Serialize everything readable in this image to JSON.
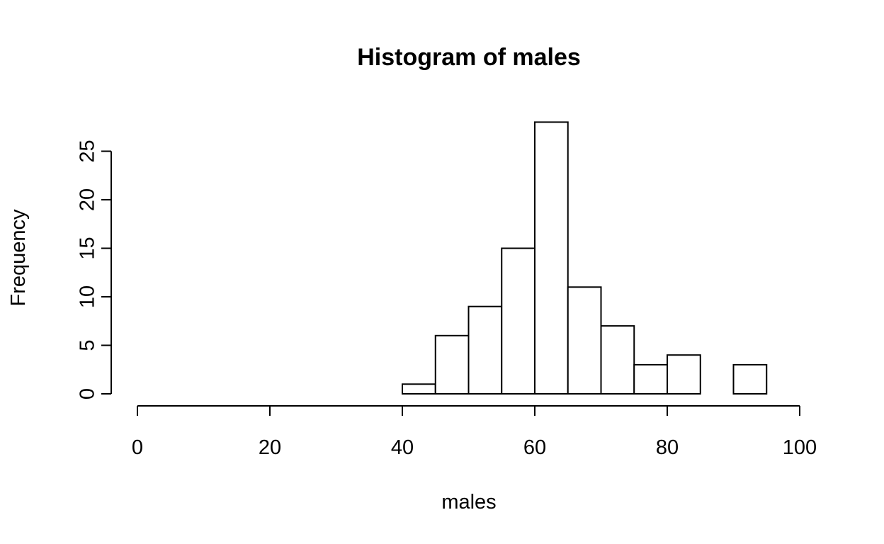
{
  "chart_data": {
    "type": "bar",
    "subtype": "histogram",
    "title": "Histogram of males",
    "xlabel": "males",
    "ylabel": "Frequency",
    "bins": [
      {
        "start": 40,
        "end": 45,
        "count": 1
      },
      {
        "start": 45,
        "end": 50,
        "count": 6
      },
      {
        "start": 50,
        "end": 55,
        "count": 9
      },
      {
        "start": 55,
        "end": 60,
        "count": 15
      },
      {
        "start": 60,
        "end": 65,
        "count": 28
      },
      {
        "start": 65,
        "end": 70,
        "count": 11
      },
      {
        "start": 70,
        "end": 75,
        "count": 7
      },
      {
        "start": 75,
        "end": 80,
        "count": 3
      },
      {
        "start": 80,
        "end": 85,
        "count": 4
      },
      {
        "start": 85,
        "end": 90,
        "count": 0
      },
      {
        "start": 90,
        "end": 95,
        "count": 3
      }
    ],
    "xlim": [
      0,
      100
    ],
    "ylim": [
      0,
      28
    ],
    "xticks": [
      0,
      20,
      40,
      60,
      80,
      100
    ],
    "xtick_labels": [
      "0",
      "20",
      "40",
      "60",
      "80",
      "100"
    ],
    "yticks": [
      0,
      5,
      10,
      15,
      20,
      25
    ],
    "ytick_labels": [
      "0",
      "5",
      "10",
      "15",
      "20",
      "25"
    ],
    "grid": false,
    "bar_fill": "#ffffff",
    "bar_stroke": "#000000"
  }
}
